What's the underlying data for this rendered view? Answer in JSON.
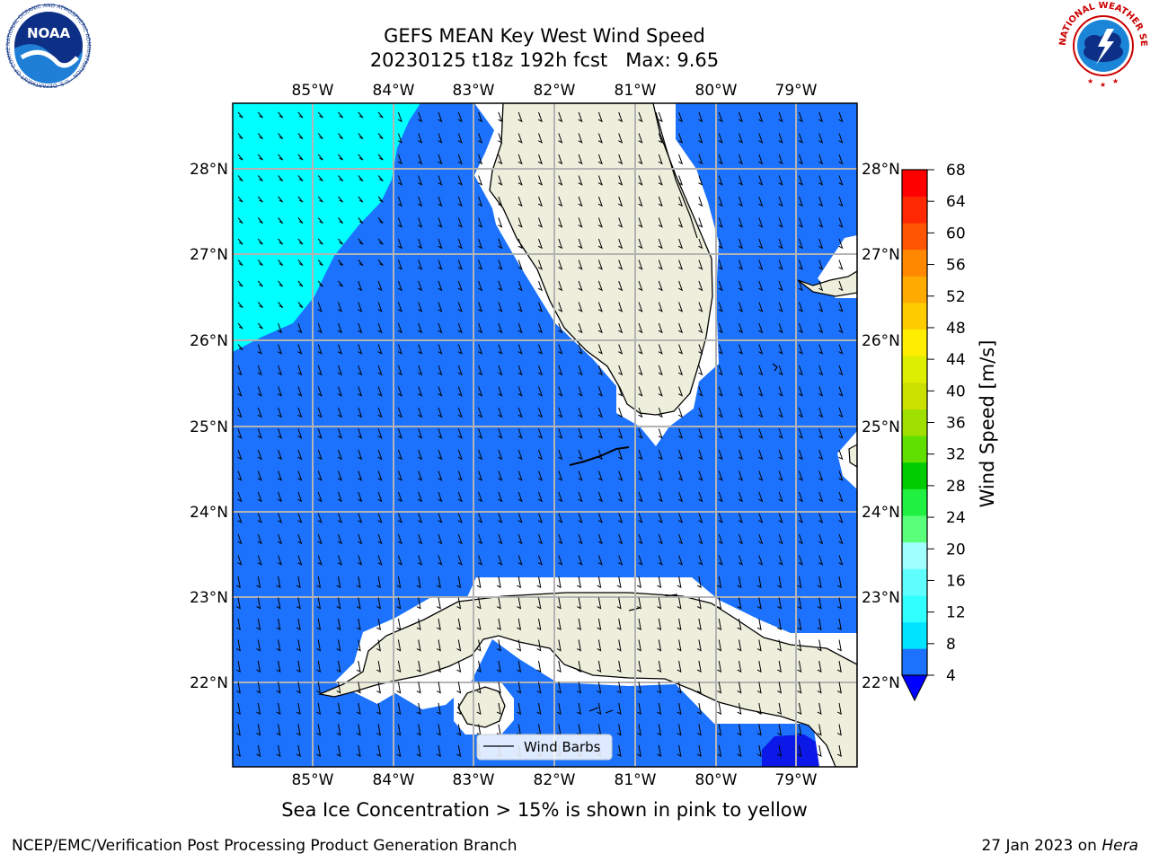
{
  "header": {
    "title_line1": "GEFS MEAN Key West Wind Speed",
    "title_line2": "20230125 t18z 192h fcst   Max: 9.65"
  },
  "logos": {
    "left": {
      "name": "NOAA",
      "ring_text": "NATIONAL OCEANIC AND ATMOSPHERIC ADMINISTRATION · U.S. DEPARTMENT OF COMMERCE"
    },
    "right": {
      "ring_text": "NATIONAL WEATHER SERVICE"
    }
  },
  "map": {
    "lon_labels": [
      "85°W",
      "84°W",
      "83°W",
      "82°W",
      "81°W",
      "80°W",
      "79°W"
    ],
    "lat_labels": [
      "28°N",
      "27°N",
      "26°N",
      "25°N",
      "24°N",
      "23°N",
      "22°N"
    ],
    "legend_label": "Wind Barbs",
    "colors": {
      "ocean": "#1c72fc",
      "high_wind": "#00ffff",
      "low_wind": "#0c18e8",
      "land": "#eeeedc",
      "grid": "#b4b4b4",
      "barb": "#000000"
    }
  },
  "colorbar": {
    "label": "Wind Speed [m/s]",
    "ticks": [
      "4",
      "8",
      "12",
      "16",
      "20",
      "24",
      "28",
      "32",
      "36",
      "40",
      "44",
      "48",
      "52",
      "56",
      "60",
      "64",
      "68"
    ],
    "bands": [
      "#1c72fc",
      "#00e5ff",
      "#30ffff",
      "#60ffff",
      "#a0ffff",
      "#5aff7a",
      "#20f040",
      "#00cc00",
      "#60e000",
      "#a0e000",
      "#cce000",
      "#ddee00",
      "#ffee00",
      "#ffcc00",
      "#ffaa00",
      "#ff8800",
      "#ff5500",
      "#ff2800",
      "#ff0000"
    ],
    "under_color": "#0000ff"
  },
  "footer": {
    "note": "Sea Ice Concentration > 15% is shown in pink to yellow",
    "credit_left": "NCEP/EMC/Verification Post Processing Product Generation Branch",
    "credit_date": "27 Jan 2023 on ",
    "credit_host": "Hera"
  }
}
